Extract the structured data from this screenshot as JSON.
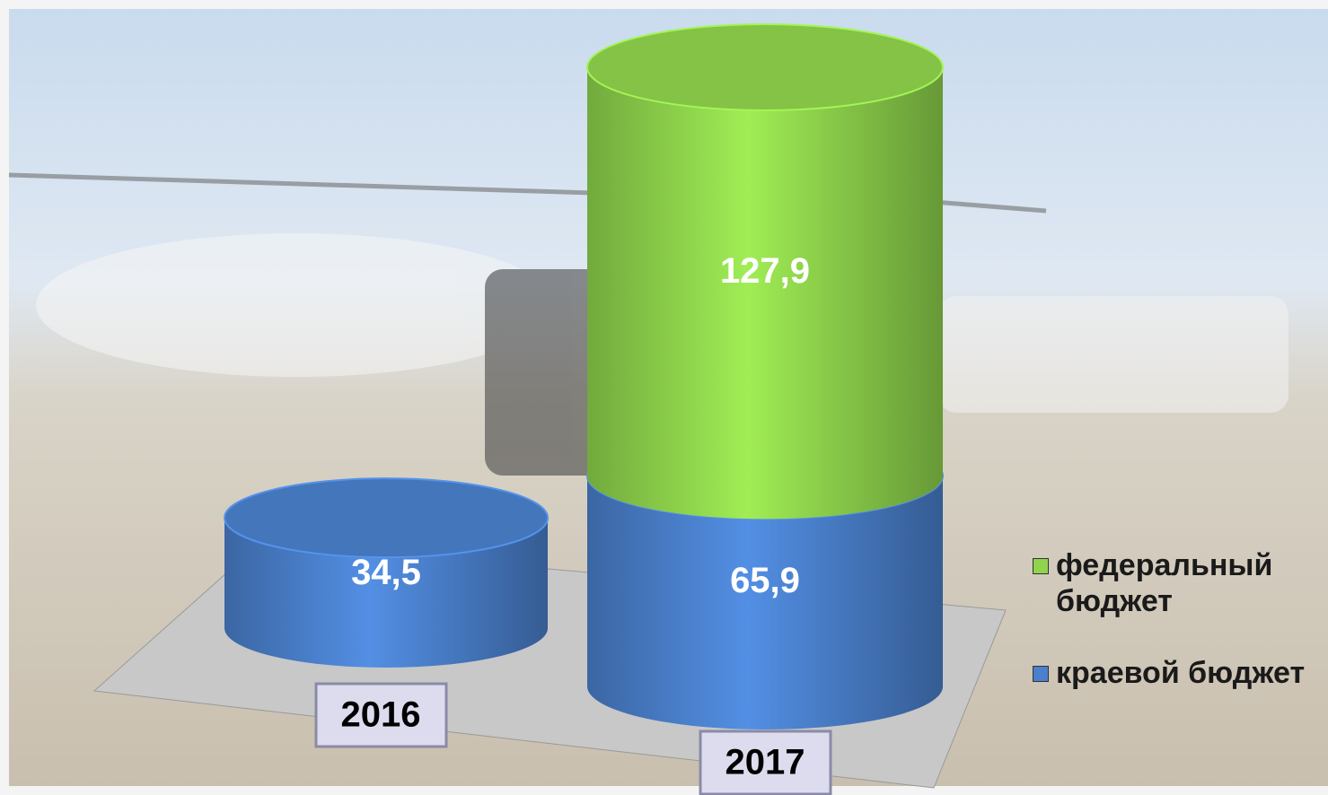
{
  "chart_data": {
    "type": "bar",
    "stacked": true,
    "categories": [
      "2016",
      "2017"
    ],
    "series": [
      {
        "name": "краевой бюджет",
        "color": "#4a80cc",
        "values": [
          34.5,
          65.9
        ],
        "value_labels": [
          "34,5",
          "65,9"
        ]
      },
      {
        "name": "федеральный бюджет",
        "color": "#8fd44c",
        "values": [
          null,
          127.9
        ],
        "value_labels": [
          null,
          "127,9"
        ]
      }
    ]
  }
}
